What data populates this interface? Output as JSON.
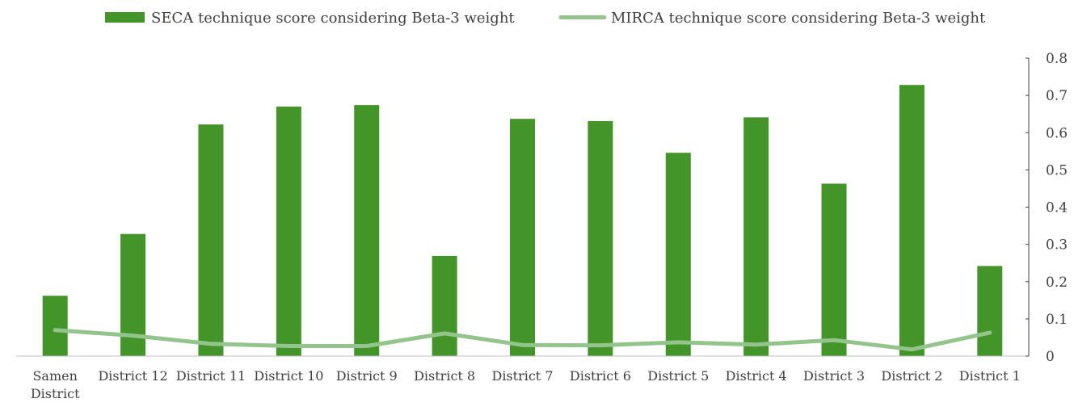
{
  "chart_data": {
    "type": "bar",
    "categories": [
      [
        "Samen",
        "District"
      ],
      [
        "District 12"
      ],
      [
        "District 11"
      ],
      [
        "District 10"
      ],
      [
        "District 9"
      ],
      [
        "District 8"
      ],
      [
        "District 7"
      ],
      [
        "District 6"
      ],
      [
        "District 5"
      ],
      [
        "District 4"
      ],
      [
        "District 3"
      ],
      [
        "District 2"
      ],
      [
        "District 1"
      ]
    ],
    "series": [
      {
        "name": "SECA technique score considering Beta-3 weight",
        "kind": "bar",
        "color": "#43952A",
        "values": [
          0.162,
          0.328,
          0.622,
          0.67,
          0.674,
          0.269,
          0.637,
          0.631,
          0.546,
          0.641,
          0.463,
          0.728,
          0.242
        ]
      },
      {
        "name": "MIRCA technique score considering Beta-3 weight",
        "kind": "line",
        "color": "#93C48B",
        "values": [
          0.07,
          0.055,
          0.033,
          0.027,
          0.027,
          0.061,
          0.03,
          0.029,
          0.037,
          0.031,
          0.043,
          0.018,
          0.063
        ]
      }
    ],
    "y_axis": {
      "side": "right",
      "min": 0,
      "max": 0.8,
      "ticks": [
        "0",
        "0.1",
        "0.2",
        "0.3",
        "0.4",
        "0.5",
        "0.6",
        "0.7",
        "0.8"
      ]
    },
    "grid": false,
    "legend_position": "top"
  }
}
